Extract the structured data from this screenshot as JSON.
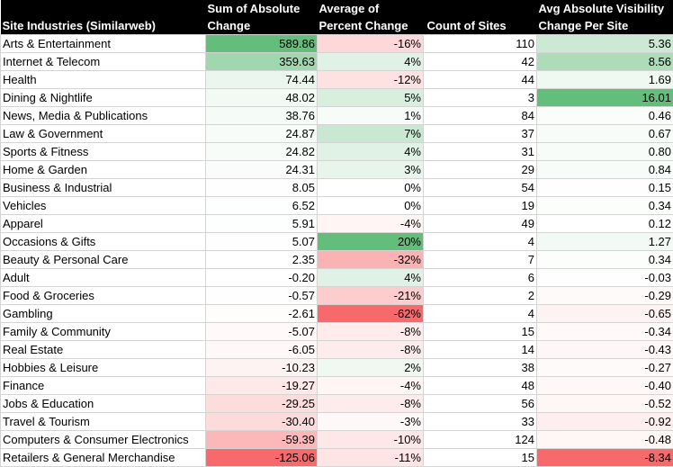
{
  "headers": {
    "industry": [
      "Site Industries (Similarweb)"
    ],
    "sum_abs": [
      "Sum of Absolute",
      "Change"
    ],
    "avg_pct": [
      "Average of",
      "Percent Change"
    ],
    "count": [
      "Count of Sites"
    ],
    "avg_vis": [
      "Avg Absolute Visibility",
      "Change Per Site"
    ]
  },
  "rows": [
    {
      "industry": "Arts & Entertainment",
      "sum_abs": "589.86",
      "avg_pct": "-16%",
      "count": "110",
      "avg_vis": "5.36"
    },
    {
      "industry": "Internet & Telecom",
      "sum_abs": "359.63",
      "avg_pct": "4%",
      "count": "42",
      "avg_vis": "8.56"
    },
    {
      "industry": "Health",
      "sum_abs": "74.44",
      "avg_pct": "-12%",
      "count": "44",
      "avg_vis": "1.69"
    },
    {
      "industry": "Dining & Nightlife",
      "sum_abs": "48.02",
      "avg_pct": "5%",
      "count": "3",
      "avg_vis": "16.01"
    },
    {
      "industry": "News, Media & Publications",
      "sum_abs": "38.76",
      "avg_pct": "1%",
      "count": "84",
      "avg_vis": "0.46"
    },
    {
      "industry": "Law & Government",
      "sum_abs": "24.87",
      "avg_pct": "7%",
      "count": "37",
      "avg_vis": "0.67"
    },
    {
      "industry": "Sports & Fitness",
      "sum_abs": "24.82",
      "avg_pct": "4%",
      "count": "31",
      "avg_vis": "0.80"
    },
    {
      "industry": "Home & Garden",
      "sum_abs": "24.31",
      "avg_pct": "3%",
      "count": "29",
      "avg_vis": "0.84"
    },
    {
      "industry": "Business & Industrial",
      "sum_abs": "8.05",
      "avg_pct": "0%",
      "count": "54",
      "avg_vis": "0.15"
    },
    {
      "industry": "Vehicles",
      "sum_abs": "6.52",
      "avg_pct": "0%",
      "count": "19",
      "avg_vis": "0.34"
    },
    {
      "industry": "Apparel",
      "sum_abs": "5.91",
      "avg_pct": "-4%",
      "count": "49",
      "avg_vis": "0.12"
    },
    {
      "industry": "Occasions & Gifts",
      "sum_abs": "5.07",
      "avg_pct": "20%",
      "count": "4",
      "avg_vis": "1.27"
    },
    {
      "industry": "Beauty & Personal Care",
      "sum_abs": "2.35",
      "avg_pct": "-32%",
      "count": "7",
      "avg_vis": "0.34"
    },
    {
      "industry": "Adult",
      "sum_abs": "-0.20",
      "avg_pct": "4%",
      "count": "6",
      "avg_vis": "-0.03"
    },
    {
      "industry": "Food & Groceries",
      "sum_abs": "-0.57",
      "avg_pct": "-21%",
      "count": "2",
      "avg_vis": "-0.29"
    },
    {
      "industry": "Gambling",
      "sum_abs": "-2.61",
      "avg_pct": "-62%",
      "count": "4",
      "avg_vis": "-0.65"
    },
    {
      "industry": "Family & Community",
      "sum_abs": "-5.07",
      "avg_pct": "-8%",
      "count": "15",
      "avg_vis": "-0.34"
    },
    {
      "industry": "Real Estate",
      "sum_abs": "-6.05",
      "avg_pct": "-8%",
      "count": "14",
      "avg_vis": "-0.43"
    },
    {
      "industry": "Hobbies & Leisure",
      "sum_abs": "-10.23",
      "avg_pct": "2%",
      "count": "38",
      "avg_vis": "-0.27"
    },
    {
      "industry": "Finance",
      "sum_abs": "-19.27",
      "avg_pct": "-4%",
      "count": "48",
      "avg_vis": "-0.40"
    },
    {
      "industry": "Jobs & Education",
      "sum_abs": "-29.25",
      "avg_pct": "-8%",
      "count": "56",
      "avg_vis": "-0.52"
    },
    {
      "industry": "Travel & Tourism",
      "sum_abs": "-30.40",
      "avg_pct": "-3%",
      "count": "33",
      "avg_vis": "-0.92"
    },
    {
      "industry": "Computers & Consumer Electronics",
      "sum_abs": "-59.39",
      "avg_pct": "-10%",
      "count": "124",
      "avg_vis": "-0.48"
    },
    {
      "industry": "Retailers & General Merchandise",
      "sum_abs": "-125.06",
      "avg_pct": "-11%",
      "count": "15",
      "avg_vis": "-8.34"
    }
  ],
  "colors": {
    "header_bg": "#000000",
    "header_text": "#ffffff",
    "positive": "#63be7b",
    "neutral": "#ffffff",
    "negative": "#f8696b"
  }
}
